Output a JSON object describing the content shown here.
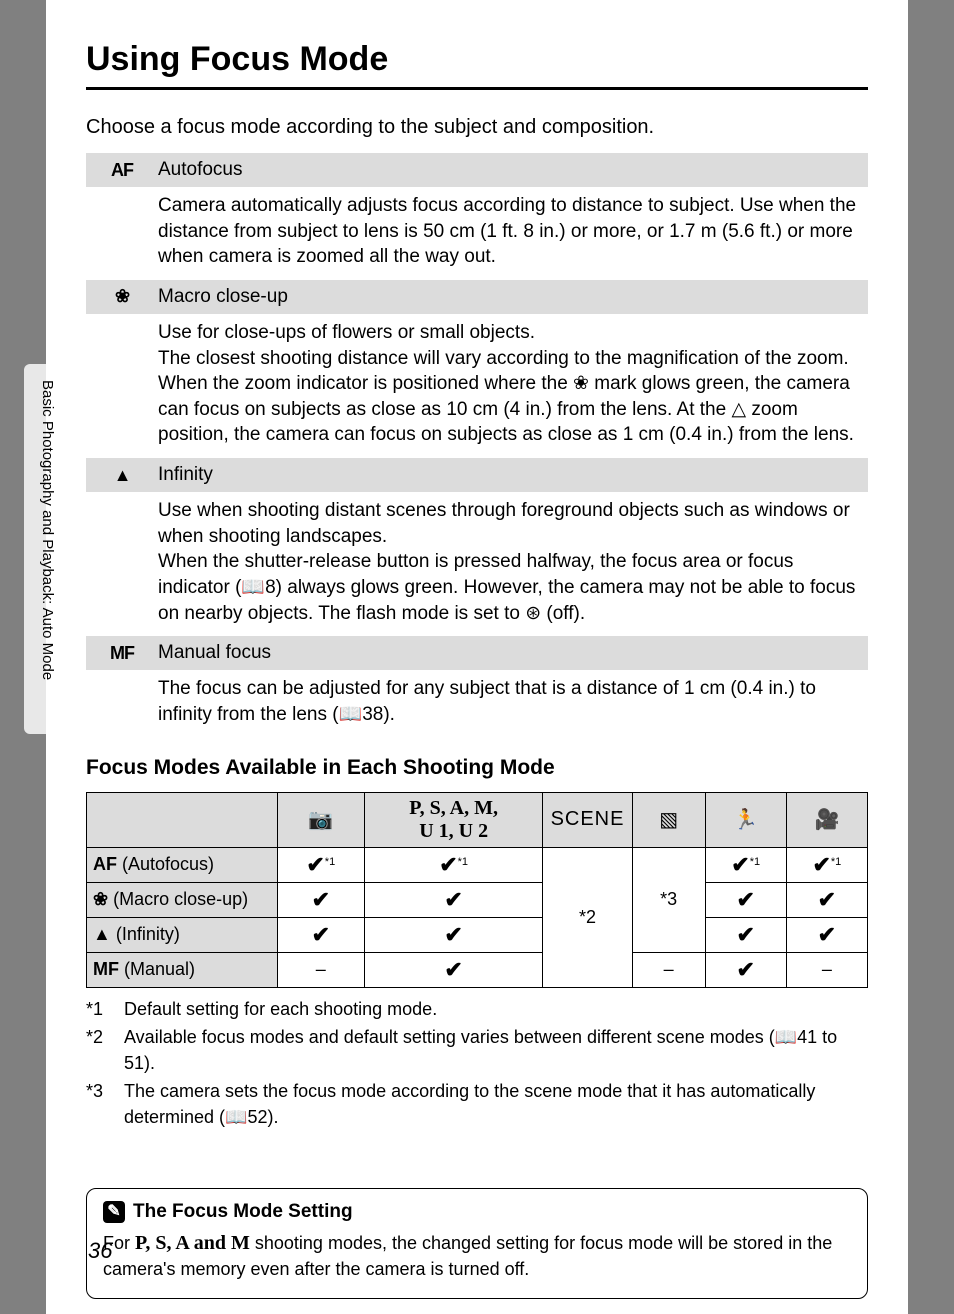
{
  "side_label": "Basic Photography and Playback: Auto Mode",
  "title": "Using Focus Mode",
  "intro": "Choose a focus mode according to the subject and composition.",
  "modes_desc": [
    {
      "icon": "AF",
      "title": "Autofocus",
      "body": "Camera automatically adjusts focus according to distance to subject. Use when the distance from subject to lens is 50 cm (1 ft. 8 in.) or more, or 1.7 m (5.6 ft.) or more when camera is zoomed all the way out."
    },
    {
      "icon": "❀",
      "title": "Macro close-up",
      "body": "Use for close-ups of flowers or small objects.\nThe closest shooting distance will vary according to the magnification of the zoom. When the zoom indicator is positioned where the ❀ mark glows green, the camera can focus on subjects as close as 10 cm (4 in.) from the lens. At the △ zoom position, the camera can focus on subjects as close as 1 cm (0.4 in.) from the lens."
    },
    {
      "icon": "▲",
      "title": "Infinity",
      "body": "Use when shooting distant scenes through foreground objects such as windows or when shooting landscapes.\nWhen the shutter-release button is pressed halfway, the focus area or focus indicator (📖8) always glows green. However, the camera may not be able to focus on nearby objects. The flash mode is set to ⊛ (off)."
    },
    {
      "icon": "MF",
      "title": "Manual focus",
      "body": "The focus can be adjusted for any subject that is a distance of 1 cm (0.4 in.) to infinity from the lens (📖38)."
    }
  ],
  "subhead": "Focus Modes Available in Each Shooting Mode",
  "table": {
    "headers": {
      "auto": "📷",
      "psam_line1": "P, S, A, M,",
      "psam_line2": "U 1, U 2",
      "scene": "SCENE",
      "scene_auto": "▧",
      "sport": "🏃",
      "movie": "🎥"
    },
    "rows": [
      {
        "icon": "AF",
        "label": " (Autofocus)",
        "cells": [
          "✔*1",
          "✔*1",
          null,
          null,
          "✔*1",
          "✔*1"
        ]
      },
      {
        "icon": "❀",
        "label": " (Macro close-up)",
        "cells": [
          "✔",
          "✔",
          null,
          null,
          "✔",
          "✔"
        ]
      },
      {
        "icon": "▲",
        "label": " (Infinity)",
        "cells": [
          "✔",
          "✔",
          null,
          null,
          "✔",
          "✔"
        ]
      },
      {
        "icon": "MF",
        "label": " (Manual)",
        "cells": [
          "–",
          "✔",
          null,
          "–",
          "✔",
          "–"
        ]
      }
    ],
    "merged": {
      "scene": "*2",
      "scene_auto": "*3"
    }
  },
  "footnotes": [
    {
      "num": "*1",
      "text": "Default setting for each shooting mode."
    },
    {
      "num": "*2",
      "text": "Available focus modes and default setting varies between different scene modes (📖41 to 51)."
    },
    {
      "num": "*3",
      "text": "The camera sets the focus mode according to the scene mode that it has automatically determined (📖52)."
    }
  ],
  "note": {
    "title": "The Focus Mode Setting",
    "body_prefix": "For ",
    "body_modes": "P, S, A and M",
    "body_suffix": " shooting modes, the changed setting for focus mode will be stored in the camera's memory even after the camera is turned off."
  },
  "page_number": "36"
}
